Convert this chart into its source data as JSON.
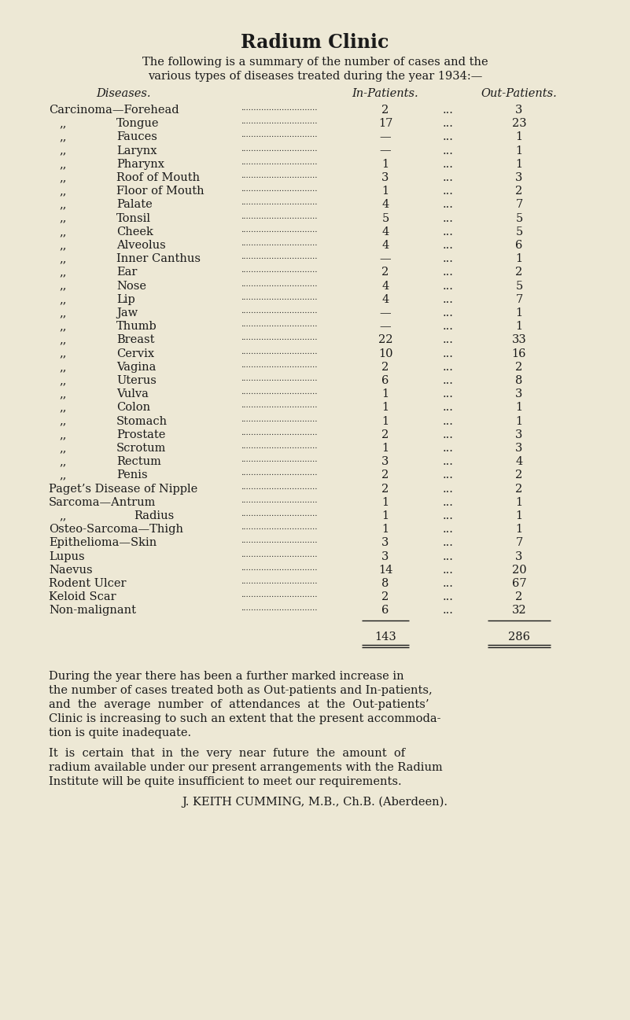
{
  "title": "Radium Clinic",
  "intro_line1": "The following is a summary of the number of cases and the",
  "intro_line2": "various types of diseases treated during the year 1934:—",
  "col_header_disease": "Diseases.",
  "col_header_in": "In-Patients.",
  "col_header_out": "Out-Patients.",
  "rows": [
    {
      "indent": 0,
      "label": "Carcinoma—Forehead",
      "in": "2",
      "out": "3"
    },
    {
      "indent": 1,
      "label": "Tongue",
      "in": "17",
      "out": "23"
    },
    {
      "indent": 1,
      "label": "Fauces",
      "in": "—",
      "out": "1"
    },
    {
      "indent": 1,
      "label": "Larynx",
      "in": "—",
      "out": "1"
    },
    {
      "indent": 1,
      "label": "Pharynx",
      "in": "1",
      "out": "1"
    },
    {
      "indent": 1,
      "label": "Roof of Mouth",
      "in": "3",
      "out": "3"
    },
    {
      "indent": 1,
      "label": "Floor of Mouth",
      "in": "1",
      "out": "2"
    },
    {
      "indent": 1,
      "label": "Palate",
      "in": "4",
      "out": "7"
    },
    {
      "indent": 1,
      "label": "Tonsil",
      "in": "5",
      "out": "5"
    },
    {
      "indent": 1,
      "label": "Cheek",
      "in": "4",
      "out": "5"
    },
    {
      "indent": 1,
      "label": "Alveolus",
      "in": "4",
      "out": "6"
    },
    {
      "indent": 1,
      "label": "Inner Canthus",
      "in": "—",
      "out": "1"
    },
    {
      "indent": 1,
      "label": "Ear",
      "in": "2",
      "out": "2"
    },
    {
      "indent": 1,
      "label": "Nose",
      "in": "4",
      "out": "5"
    },
    {
      "indent": 1,
      "label": "Lip",
      "in": "4",
      "out": "7"
    },
    {
      "indent": 1,
      "label": "Jaw",
      "in": "—",
      "out": "1"
    },
    {
      "indent": 1,
      "label": "Thumb",
      "in": "—",
      "out": "1"
    },
    {
      "indent": 1,
      "label": "Breast",
      "in": "22",
      "out": "33"
    },
    {
      "indent": 1,
      "label": "Cervix",
      "in": "10",
      "out": "16"
    },
    {
      "indent": 1,
      "label": "Vagina",
      "in": "2",
      "out": "2"
    },
    {
      "indent": 1,
      "label": "Uterus",
      "in": "6",
      "out": "8"
    },
    {
      "indent": 1,
      "label": "Vulva",
      "in": "1",
      "out": "3"
    },
    {
      "indent": 1,
      "label": "Colon",
      "in": "1",
      "out": "1"
    },
    {
      "indent": 1,
      "label": "Stomach",
      "in": "1",
      "out": "1"
    },
    {
      "indent": 1,
      "label": "Prostate",
      "in": "2",
      "out": "3"
    },
    {
      "indent": 1,
      "label": "Scrotum",
      "in": "1",
      "out": "3"
    },
    {
      "indent": 1,
      "label": "Rectum",
      "in": "3",
      "out": "4"
    },
    {
      "indent": 1,
      "label": "Penis",
      "in": "2",
      "out": "2"
    },
    {
      "indent": 0,
      "label": "Paget’s Disease of Nipple",
      "in": "2",
      "out": "2"
    },
    {
      "indent": 0,
      "label": "Sarcoma—Antrum",
      "in": "1",
      "out": "1"
    },
    {
      "indent": 2,
      "label": "Radius",
      "in": "1",
      "out": "1"
    },
    {
      "indent": 0,
      "label": "Osteo-Sarcoma—Thigh",
      "in": "1",
      "out": "1"
    },
    {
      "indent": 0,
      "label": "Epithelioma—Skin",
      "in": "3",
      "out": "7"
    },
    {
      "indent": 0,
      "label": "Lupus",
      "in": "3",
      "out": "3"
    },
    {
      "indent": 0,
      "label": "Naevus",
      "in": "14",
      "out": "20"
    },
    {
      "indent": 0,
      "label": "Rodent Ulcer",
      "in": "8",
      "out": "67"
    },
    {
      "indent": 0,
      "label": "Keloid Scar",
      "in": "2",
      "out": "2"
    },
    {
      "indent": 0,
      "label": "Non-malignant",
      "in": "6",
      "out": "32"
    }
  ],
  "total_in": "143",
  "total_out": "286",
  "footer_para1_lines": [
    "During the year there has been a further marked increase in",
    "the number of cases treated both as Out-patients and In-patients,",
    "and  the  average  number  of  attendances  at  the  Out-patients’",
    "Clinic is increasing to such an extent that the present accommoda-",
    "tion is quite inadequate."
  ],
  "footer_para2_lines": [
    "It  is  certain  that  in  the  very  near  future  the  amount  of",
    "radium available under our present arrangements with the Radium",
    "Institute will be quite insufficient to meet our requirements."
  ],
  "footer_sig": "J. KEITH CUMMING, M.B., Ch.B. (Aberdeen).",
  "bg_color": "#ede8d5",
  "text_color": "#1a1a1a"
}
